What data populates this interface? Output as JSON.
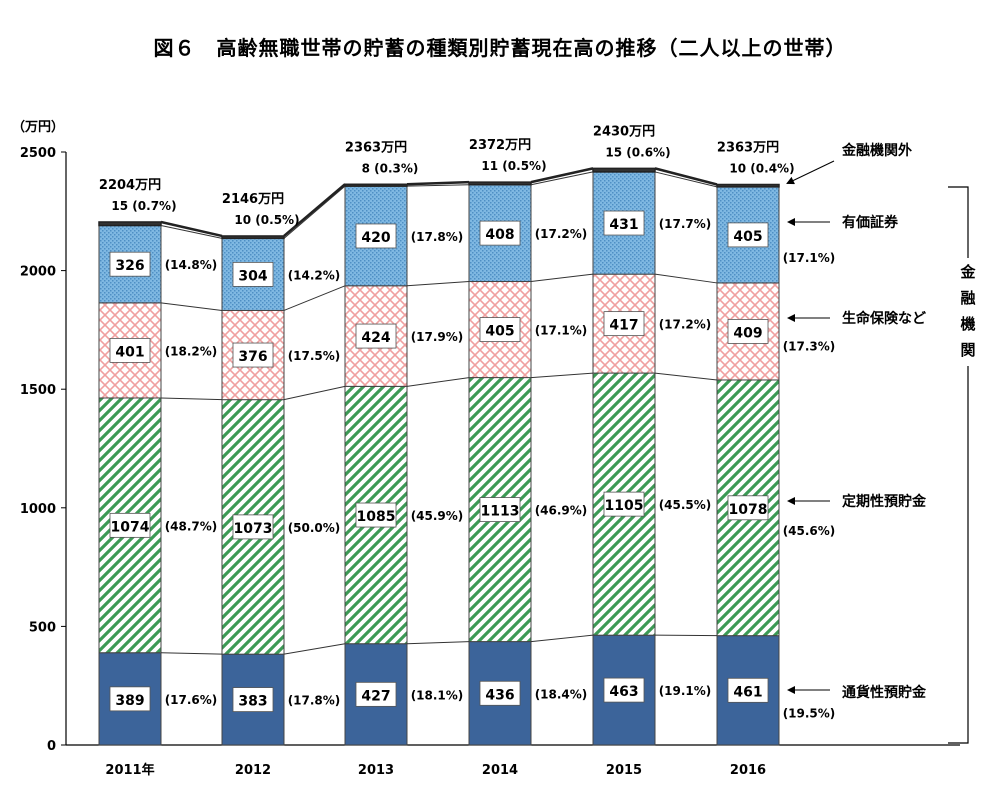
{
  "title": "図６　高齢無職世帯の貯蓄の種類別貯蓄現在高の推移（二人以上の世帯）",
  "chart_data": {
    "type": "bar",
    "stacked": true,
    "title": "図６　高齢無職世帯の貯蓄の種類別貯蓄現在高の推移（二人以上の世帯）",
    "ylabel": "（万円）",
    "ylim": [
      0,
      2500
    ],
    "yticks": [
      "0",
      "500",
      "1000",
      "1500",
      "2000",
      "2500"
    ],
    "categories": [
      "2011年",
      "2012",
      "2013",
      "2014",
      "2015",
      "2016"
    ],
    "totals": [
      2204,
      2146,
      2363,
      2372,
      2430,
      2363
    ],
    "total_labels": [
      "2204万円",
      "2146万円",
      "2363万円",
      "2372万円",
      "2430万円",
      "2363万円"
    ],
    "series": [
      {
        "name": "通貨性預貯金",
        "color": "#3c649a",
        "pattern": "solid",
        "values": [
          389,
          383,
          427,
          436,
          463,
          461
        ],
        "pct": [
          "(17.6%)",
          "(17.8%)",
          "(18.1%)",
          "(18.4%)",
          "(19.1%)",
          "(19.5%)"
        ]
      },
      {
        "name": "定期性預貯金",
        "color": "#3c9a55",
        "pattern": "diagonal",
        "values": [
          1074,
          1073,
          1085,
          1113,
          1105,
          1078
        ],
        "pct": [
          "(48.7%)",
          "(50.0%)",
          "(45.9%)",
          "(46.9%)",
          "(45.5%)",
          "(45.6%)"
        ]
      },
      {
        "name": "生命保険など",
        "color": "#f0a0a0",
        "pattern": "crosshatch",
        "values": [
          401,
          376,
          424,
          405,
          417,
          409
        ],
        "pct": [
          "(18.2%)",
          "(17.5%)",
          "(17.9%)",
          "(17.1%)",
          "(17.2%)",
          "(17.3%)"
        ]
      },
      {
        "name": "有価証券",
        "color": "#7fb8e2",
        "pattern": "dots",
        "values": [
          326,
          304,
          420,
          408,
          431,
          405
        ],
        "pct": [
          "(14.8%)",
          "(14.2%)",
          "(17.8%)",
          "(17.2%)",
          "(17.7%)",
          "(17.1%)"
        ]
      },
      {
        "name": "金融機関外",
        "color": "#333333",
        "pattern": "solid",
        "values": [
          15,
          10,
          8,
          11,
          15,
          10
        ],
        "pct": [
          "(0.7%)",
          "(0.5%)",
          "(0.3%)",
          "(0.5%)",
          "(0.6%)",
          "(0.4%)"
        ]
      }
    ],
    "bracket_label": [
      "金",
      "融",
      "機",
      "関"
    ]
  }
}
